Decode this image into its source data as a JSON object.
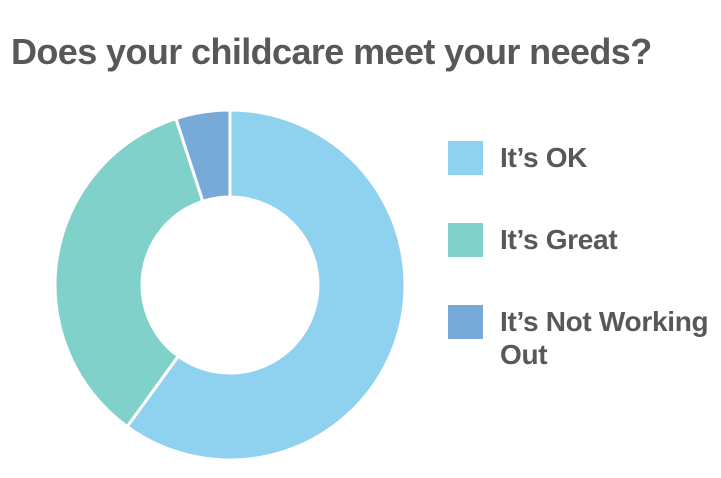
{
  "title": "Does your childcare meet your needs?",
  "chart_data": {
    "type": "pie",
    "subtype": "donut",
    "title": "Does your childcare meet your needs?",
    "categories": [
      "It’s OK",
      "It’s Great",
      "It’s Not Working Out"
    ],
    "values": [
      60,
      35,
      5
    ],
    "colors": [
      "#8FD2EF",
      "#7FD1C9",
      "#78AAD7"
    ],
    "start_angle_deg": 0,
    "direction": "clockwise",
    "inner_radius_ratio": 0.5,
    "separator_color": "#FFFFFF",
    "legend_position": "right",
    "data_labels": "none"
  },
  "legend": {
    "items": [
      {
        "label": "It’s OK",
        "color": "#8FD2EF"
      },
      {
        "label": "It’s Great",
        "color": "#7FD1C9"
      },
      {
        "label": "It’s Not Working Out",
        "color": "#78AAD7"
      }
    ]
  },
  "colors": {
    "background": "#FFFFFF",
    "title_text": "#58585A",
    "legend_text": "#58585A"
  }
}
